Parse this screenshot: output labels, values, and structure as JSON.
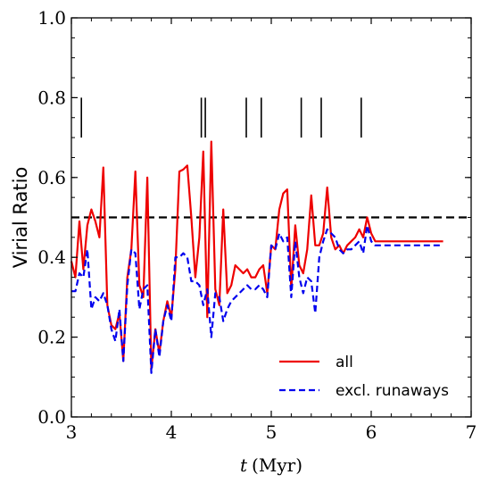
{
  "chart_data": {
    "type": "line",
    "xlabel_var": "t",
    "xlabel_unit": "(Myr)",
    "ylabel": "Virial Ratio",
    "xlim": [
      3,
      7
    ],
    "ylim": [
      0.0,
      1.0
    ],
    "xticks": [
      3,
      4,
      5,
      6,
      7
    ],
    "yticks": [
      0.0,
      0.2,
      0.4,
      0.6,
      0.8,
      1.0
    ],
    "xtick_labels": [
      "3",
      "4",
      "5",
      "6",
      "7"
    ],
    "ytick_labels": [
      "0.0",
      "0.2",
      "0.4",
      "0.6",
      "0.8",
      "1.0"
    ],
    "grid": false,
    "legend_position": "lower-right",
    "reference_line": {
      "y": 0.5,
      "color": "#000000",
      "style": "dashed"
    },
    "event_markers": {
      "x": [
        3.1,
        4.3,
        4.34,
        4.75,
        4.9,
        5.3,
        5.5,
        5.9
      ],
      "y_range": [
        0.7,
        0.8
      ],
      "color": "#000000"
    },
    "series": [
      {
        "name": "all",
        "color": "#ee0000",
        "style": "solid",
        "x": [
          3.0,
          3.04,
          3.08,
          3.12,
          3.16,
          3.2,
          3.24,
          3.28,
          3.32,
          3.36,
          3.4,
          3.44,
          3.48,
          3.52,
          3.56,
          3.6,
          3.64,
          3.68,
          3.72,
          3.76,
          3.8,
          3.84,
          3.88,
          3.92,
          3.96,
          4.0,
          4.04,
          4.08,
          4.12,
          4.16,
          4.2,
          4.24,
          4.28,
          4.32,
          4.36,
          4.4,
          4.44,
          4.48,
          4.52,
          4.56,
          4.6,
          4.64,
          4.68,
          4.72,
          4.76,
          4.8,
          4.84,
          4.88,
          4.92,
          4.96,
          5.0,
          5.04,
          5.08,
          5.12,
          5.16,
          5.2,
          5.24,
          5.28,
          5.32,
          5.36,
          5.4,
          5.44,
          5.48,
          5.52,
          5.56,
          5.6,
          5.64,
          5.68,
          5.72,
          5.76,
          5.8,
          5.84,
          5.88,
          5.92,
          5.96,
          6.0,
          6.04,
          6.08,
          6.12,
          6.16,
          6.2,
          6.24,
          6.28,
          6.32,
          6.36,
          6.4,
          6.44,
          6.48,
          6.52,
          6.56,
          6.6,
          6.64,
          6.68,
          6.72
        ],
        "y": [
          0.39,
          0.35,
          0.49,
          0.37,
          0.48,
          0.52,
          0.49,
          0.45,
          0.625,
          0.28,
          0.23,
          0.22,
          0.26,
          0.14,
          0.35,
          0.42,
          0.615,
          0.33,
          0.3,
          0.6,
          0.12,
          0.22,
          0.16,
          0.24,
          0.29,
          0.25,
          0.37,
          0.615,
          0.62,
          0.63,
          0.5,
          0.35,
          0.45,
          0.665,
          0.25,
          0.69,
          0.32,
          0.28,
          0.52,
          0.31,
          0.33,
          0.38,
          0.37,
          0.36,
          0.37,
          0.35,
          0.35,
          0.37,
          0.38,
          0.31,
          0.43,
          0.42,
          0.52,
          0.56,
          0.57,
          0.32,
          0.48,
          0.38,
          0.36,
          0.42,
          0.555,
          0.43,
          0.43,
          0.46,
          0.575,
          0.45,
          0.42,
          0.43,
          0.41,
          0.43,
          0.44,
          0.45,
          0.47,
          0.45,
          0.5,
          0.46,
          0.44,
          0.44,
          0.44,
          0.44,
          0.44,
          0.44,
          0.44,
          0.44,
          0.44,
          0.44,
          0.44,
          0.44,
          0.44,
          0.44,
          0.44,
          0.44,
          0.44,
          0.44
        ]
      },
      {
        "name": "excl. runaways",
        "color": "#0000ee",
        "style": "dashed",
        "x": [
          3.0,
          3.04,
          3.08,
          3.12,
          3.16,
          3.2,
          3.24,
          3.28,
          3.32,
          3.36,
          3.4,
          3.44,
          3.48,
          3.52,
          3.56,
          3.6,
          3.64,
          3.68,
          3.72,
          3.76,
          3.8,
          3.84,
          3.88,
          3.92,
          3.96,
          4.0,
          4.04,
          4.08,
          4.12,
          4.16,
          4.2,
          4.24,
          4.28,
          4.32,
          4.36,
          4.4,
          4.44,
          4.48,
          4.52,
          4.56,
          4.6,
          4.64,
          4.68,
          4.72,
          4.76,
          4.8,
          4.84,
          4.88,
          4.92,
          4.96,
          5.0,
          5.04,
          5.08,
          5.12,
          5.16,
          5.2,
          5.24,
          5.28,
          5.32,
          5.36,
          5.4,
          5.44,
          5.48,
          5.52,
          5.56,
          5.6,
          5.64,
          5.68,
          5.72,
          5.76,
          5.8,
          5.84,
          5.88,
          5.92,
          5.96,
          6.0,
          6.04,
          6.08,
          6.12,
          6.16,
          6.2,
          6.24,
          6.28,
          6.32,
          6.36,
          6.4,
          6.44,
          6.48,
          6.52,
          6.56,
          6.6,
          6.64,
          6.68,
          6.72
        ],
        "y": [
          0.315,
          0.315,
          0.36,
          0.35,
          0.42,
          0.27,
          0.3,
          0.29,
          0.31,
          0.28,
          0.22,
          0.19,
          0.27,
          0.14,
          0.33,
          0.42,
          0.41,
          0.27,
          0.32,
          0.33,
          0.11,
          0.22,
          0.15,
          0.24,
          0.28,
          0.24,
          0.4,
          0.4,
          0.41,
          0.4,
          0.34,
          0.34,
          0.33,
          0.28,
          0.32,
          0.2,
          0.31,
          0.3,
          0.24,
          0.27,
          0.29,
          0.3,
          0.31,
          0.32,
          0.33,
          0.32,
          0.32,
          0.33,
          0.32,
          0.3,
          0.43,
          0.42,
          0.46,
          0.44,
          0.45,
          0.3,
          0.44,
          0.35,
          0.31,
          0.35,
          0.34,
          0.26,
          0.4,
          0.44,
          0.47,
          0.46,
          0.45,
          0.42,
          0.41,
          0.42,
          0.42,
          0.43,
          0.44,
          0.41,
          0.48,
          0.44,
          0.43,
          0.43,
          0.43,
          0.43,
          0.43,
          0.43,
          0.43,
          0.43,
          0.43,
          0.43,
          0.43,
          0.43,
          0.43,
          0.43,
          0.43,
          0.43,
          0.43,
          0.43
        ]
      }
    ]
  }
}
